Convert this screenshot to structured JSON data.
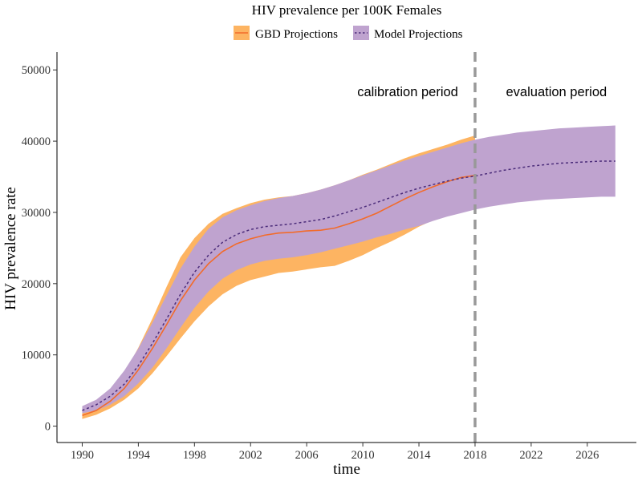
{
  "chart_data": {
    "type": "area",
    "title": "HIV prevalence per 100K Females",
    "xlabel": "time",
    "ylabel": "HIV prevalence rate",
    "xlim": [
      1988.2,
      2029.5
    ],
    "ylim": [
      -2300,
      52500
    ],
    "xticks": [
      1990,
      1994,
      1998,
      2002,
      2006,
      2010,
      2014,
      2018,
      2022,
      2026
    ],
    "yticks": [
      0,
      10000,
      20000,
      30000,
      40000,
      50000
    ],
    "grid": false,
    "legend_position": "top",
    "series": [
      {
        "name": "GBD Projections",
        "color": "#F26B2A",
        "band_color": "#FDB462",
        "x": [
          1990,
          1991,
          1992,
          1993,
          1994,
          1995,
          1996,
          1997,
          1998,
          1999,
          2000,
          2001,
          2002,
          2003,
          2004,
          2005,
          2006,
          2007,
          2008,
          2009,
          2010,
          2011,
          2012,
          2013,
          2014,
          2015,
          2016,
          2017,
          2018
        ],
        "mean": [
          1500,
          2200,
          3500,
          5300,
          7900,
          10900,
          14200,
          17600,
          20500,
          22800,
          24500,
          25600,
          26300,
          26800,
          27100,
          27200,
          27400,
          27500,
          27800,
          28400,
          29100,
          29900,
          30900,
          31900,
          32800,
          33600,
          34300,
          34900,
          35200
        ],
        "lower": [
          1000,
          1600,
          2500,
          3700,
          5300,
          7400,
          9800,
          12300,
          14700,
          16800,
          18500,
          19700,
          20500,
          21000,
          21500,
          21700,
          22000,
          22300,
          22500,
          23200,
          24000,
          25000,
          25900,
          26900,
          28000,
          28900,
          29700,
          30300,
          30800
        ],
        "upper": [
          2000,
          3000,
          4800,
          7400,
          11000,
          15100,
          19500,
          23700,
          26400,
          28400,
          29800,
          30600,
          31300,
          31800,
          32100,
          32300,
          32700,
          33200,
          33800,
          34500,
          35300,
          36000,
          36800,
          37600,
          38300,
          38900,
          39500,
          40200,
          40800
        ]
      },
      {
        "name": "Model Projections",
        "color": "#4B2C7A",
        "band_color": "#BFA3CF",
        "x": [
          1990,
          1991,
          1992,
          1993,
          1994,
          1995,
          1996,
          1997,
          1998,
          1999,
          2000,
          2001,
          2002,
          2003,
          2004,
          2005,
          2006,
          2007,
          2008,
          2009,
          2010,
          2011,
          2012,
          2013,
          2014,
          2015,
          2016,
          2017,
          2018,
          2019,
          2020,
          2021,
          2022,
          2023,
          2024,
          2025,
          2026,
          2027,
          2028
        ],
        "mean": [
          2200,
          3000,
          4200,
          5900,
          8500,
          11600,
          15000,
          18500,
          21600,
          24000,
          25800,
          26900,
          27600,
          28000,
          28200,
          28400,
          28700,
          29000,
          29500,
          30100,
          30700,
          31400,
          32100,
          32800,
          33400,
          33900,
          34400,
          34800,
          35100,
          35500,
          35900,
          36200,
          36500,
          36700,
          36900,
          37000,
          37100,
          37200,
          37200
        ],
        "lower": [
          1800,
          2200,
          3000,
          4200,
          6000,
          8200,
          10900,
          13800,
          16600,
          18900,
          20700,
          21900,
          22700,
          23200,
          23500,
          23700,
          24000,
          24400,
          24900,
          25400,
          25900,
          26500,
          27000,
          27600,
          28100,
          28800,
          29400,
          29900,
          30400,
          30800,
          31100,
          31400,
          31600,
          31800,
          31900,
          32000,
          32100,
          32200,
          32200
        ],
        "upper": [
          2800,
          3700,
          5300,
          7800,
          10900,
          14500,
          18300,
          22100,
          25200,
          27700,
          29300,
          30300,
          31000,
          31600,
          32000,
          32300,
          32700,
          33200,
          33800,
          34500,
          35200,
          35900,
          36600,
          37300,
          37900,
          38500,
          39100,
          39700,
          40200,
          40600,
          40900,
          41200,
          41400,
          41600,
          41800,
          41900,
          42000,
          42100,
          42200
        ]
      }
    ],
    "reference_line": {
      "x": 2018,
      "style": "dashed",
      "color": "#999999"
    },
    "annotations": [
      {
        "text": "calibration period",
        "x": 2013.2,
        "y": 47000
      },
      {
        "text": "evaluation period",
        "x": 2023.8,
        "y": 47000
      }
    ]
  }
}
